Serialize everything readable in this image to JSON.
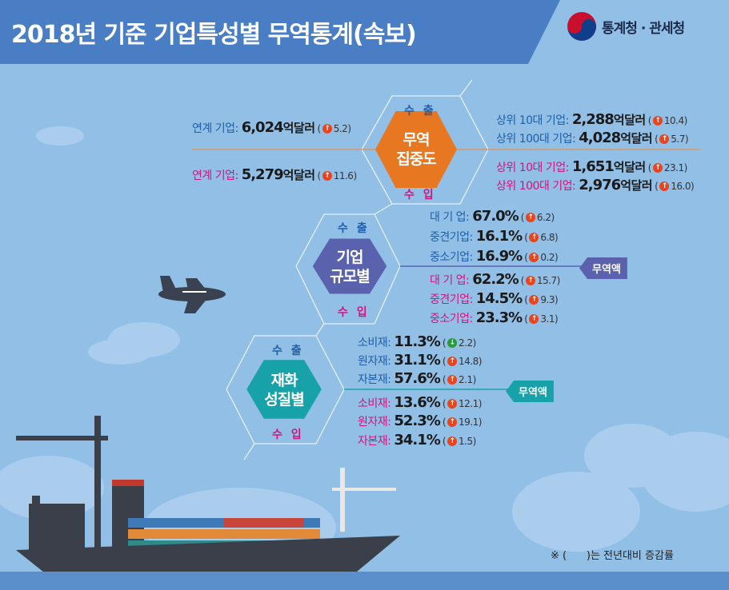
{
  "header": {
    "title": "2018년 기준 기업특성별 무역통계(속보)",
    "logo_text": "통계청 · 관세청"
  },
  "colors": {
    "export": "#1f5fa8",
    "import": "#d4137f",
    "concentration": "#e87722",
    "size": "#5b62ad",
    "goods": "#17a1a8",
    "up": "#e8451e",
    "down": "#2a9a3a"
  },
  "labels": {
    "export": "수 출",
    "import": "수 입",
    "trade_amount": "무역액"
  },
  "concentration": {
    "title_lines": [
      "무역",
      "집중도"
    ],
    "export": {
      "affiliated": {
        "label": "연계 기업:",
        "value": "6,024",
        "unit": "억달러",
        "change": "5.2",
        "dir": "up"
      },
      "top": [
        {
          "label": "상위  10대 기업:",
          "value": "2,288",
          "unit": "억달러",
          "change": "10.4",
          "dir": "up"
        },
        {
          "label": "상위 100대 기업:",
          "value": "4,028",
          "unit": "억달러",
          "change": "5.7",
          "dir": "up"
        }
      ]
    },
    "import": {
      "affiliated": {
        "label": "연계 기업:",
        "value": "5,279",
        "unit": "억달러",
        "change": "11.6",
        "dir": "up"
      },
      "top": [
        {
          "label": "상위  10대 기업:",
          "value": "1,651",
          "unit": "억달러",
          "change": "23.1",
          "dir": "up"
        },
        {
          "label": "상위 100대 기업:",
          "value": "2,976",
          "unit": "억달러",
          "change": "16.0",
          "dir": "up"
        }
      ]
    }
  },
  "size": {
    "title_lines": [
      "기업",
      "규모별"
    ],
    "export": [
      {
        "label": "대 기 업:",
        "value": "67.0%",
        "change": "6.2",
        "dir": "up"
      },
      {
        "label": "중견기업:",
        "value": "16.1%",
        "change": "6.8",
        "dir": "up"
      },
      {
        "label": "중소기업:",
        "value": "16.9%",
        "change": "0.2",
        "dir": "up"
      }
    ],
    "import": [
      {
        "label": "대 기 업:",
        "value": "62.2%",
        "change": "15.7",
        "dir": "up"
      },
      {
        "label": "중견기업:",
        "value": "14.5%",
        "change": "9.3",
        "dir": "up"
      },
      {
        "label": "중소기업:",
        "value": "23.3%",
        "change": "3.1",
        "dir": "up"
      }
    ]
  },
  "goods": {
    "title_lines": [
      "재화",
      "성질별"
    ],
    "export": [
      {
        "label": "소비재:",
        "value": "11.3%",
        "change": "2.2",
        "dir": "down"
      },
      {
        "label": "원자재:",
        "value": "31.1%",
        "change": "14.8",
        "dir": "up"
      },
      {
        "label": "자본재:",
        "value": "57.6%",
        "change": "2.1",
        "dir": "up"
      }
    ],
    "import": [
      {
        "label": "소비재:",
        "value": "13.6%",
        "change": "12.1",
        "dir": "up"
      },
      {
        "label": "원자재:",
        "value": "52.3%",
        "change": "19.1",
        "dir": "up"
      },
      {
        "label": "자본재:",
        "value": "34.1%",
        "change": "1.5",
        "dir": "up"
      }
    ]
  },
  "note": "※ (      )는 전년대비 증감률"
}
